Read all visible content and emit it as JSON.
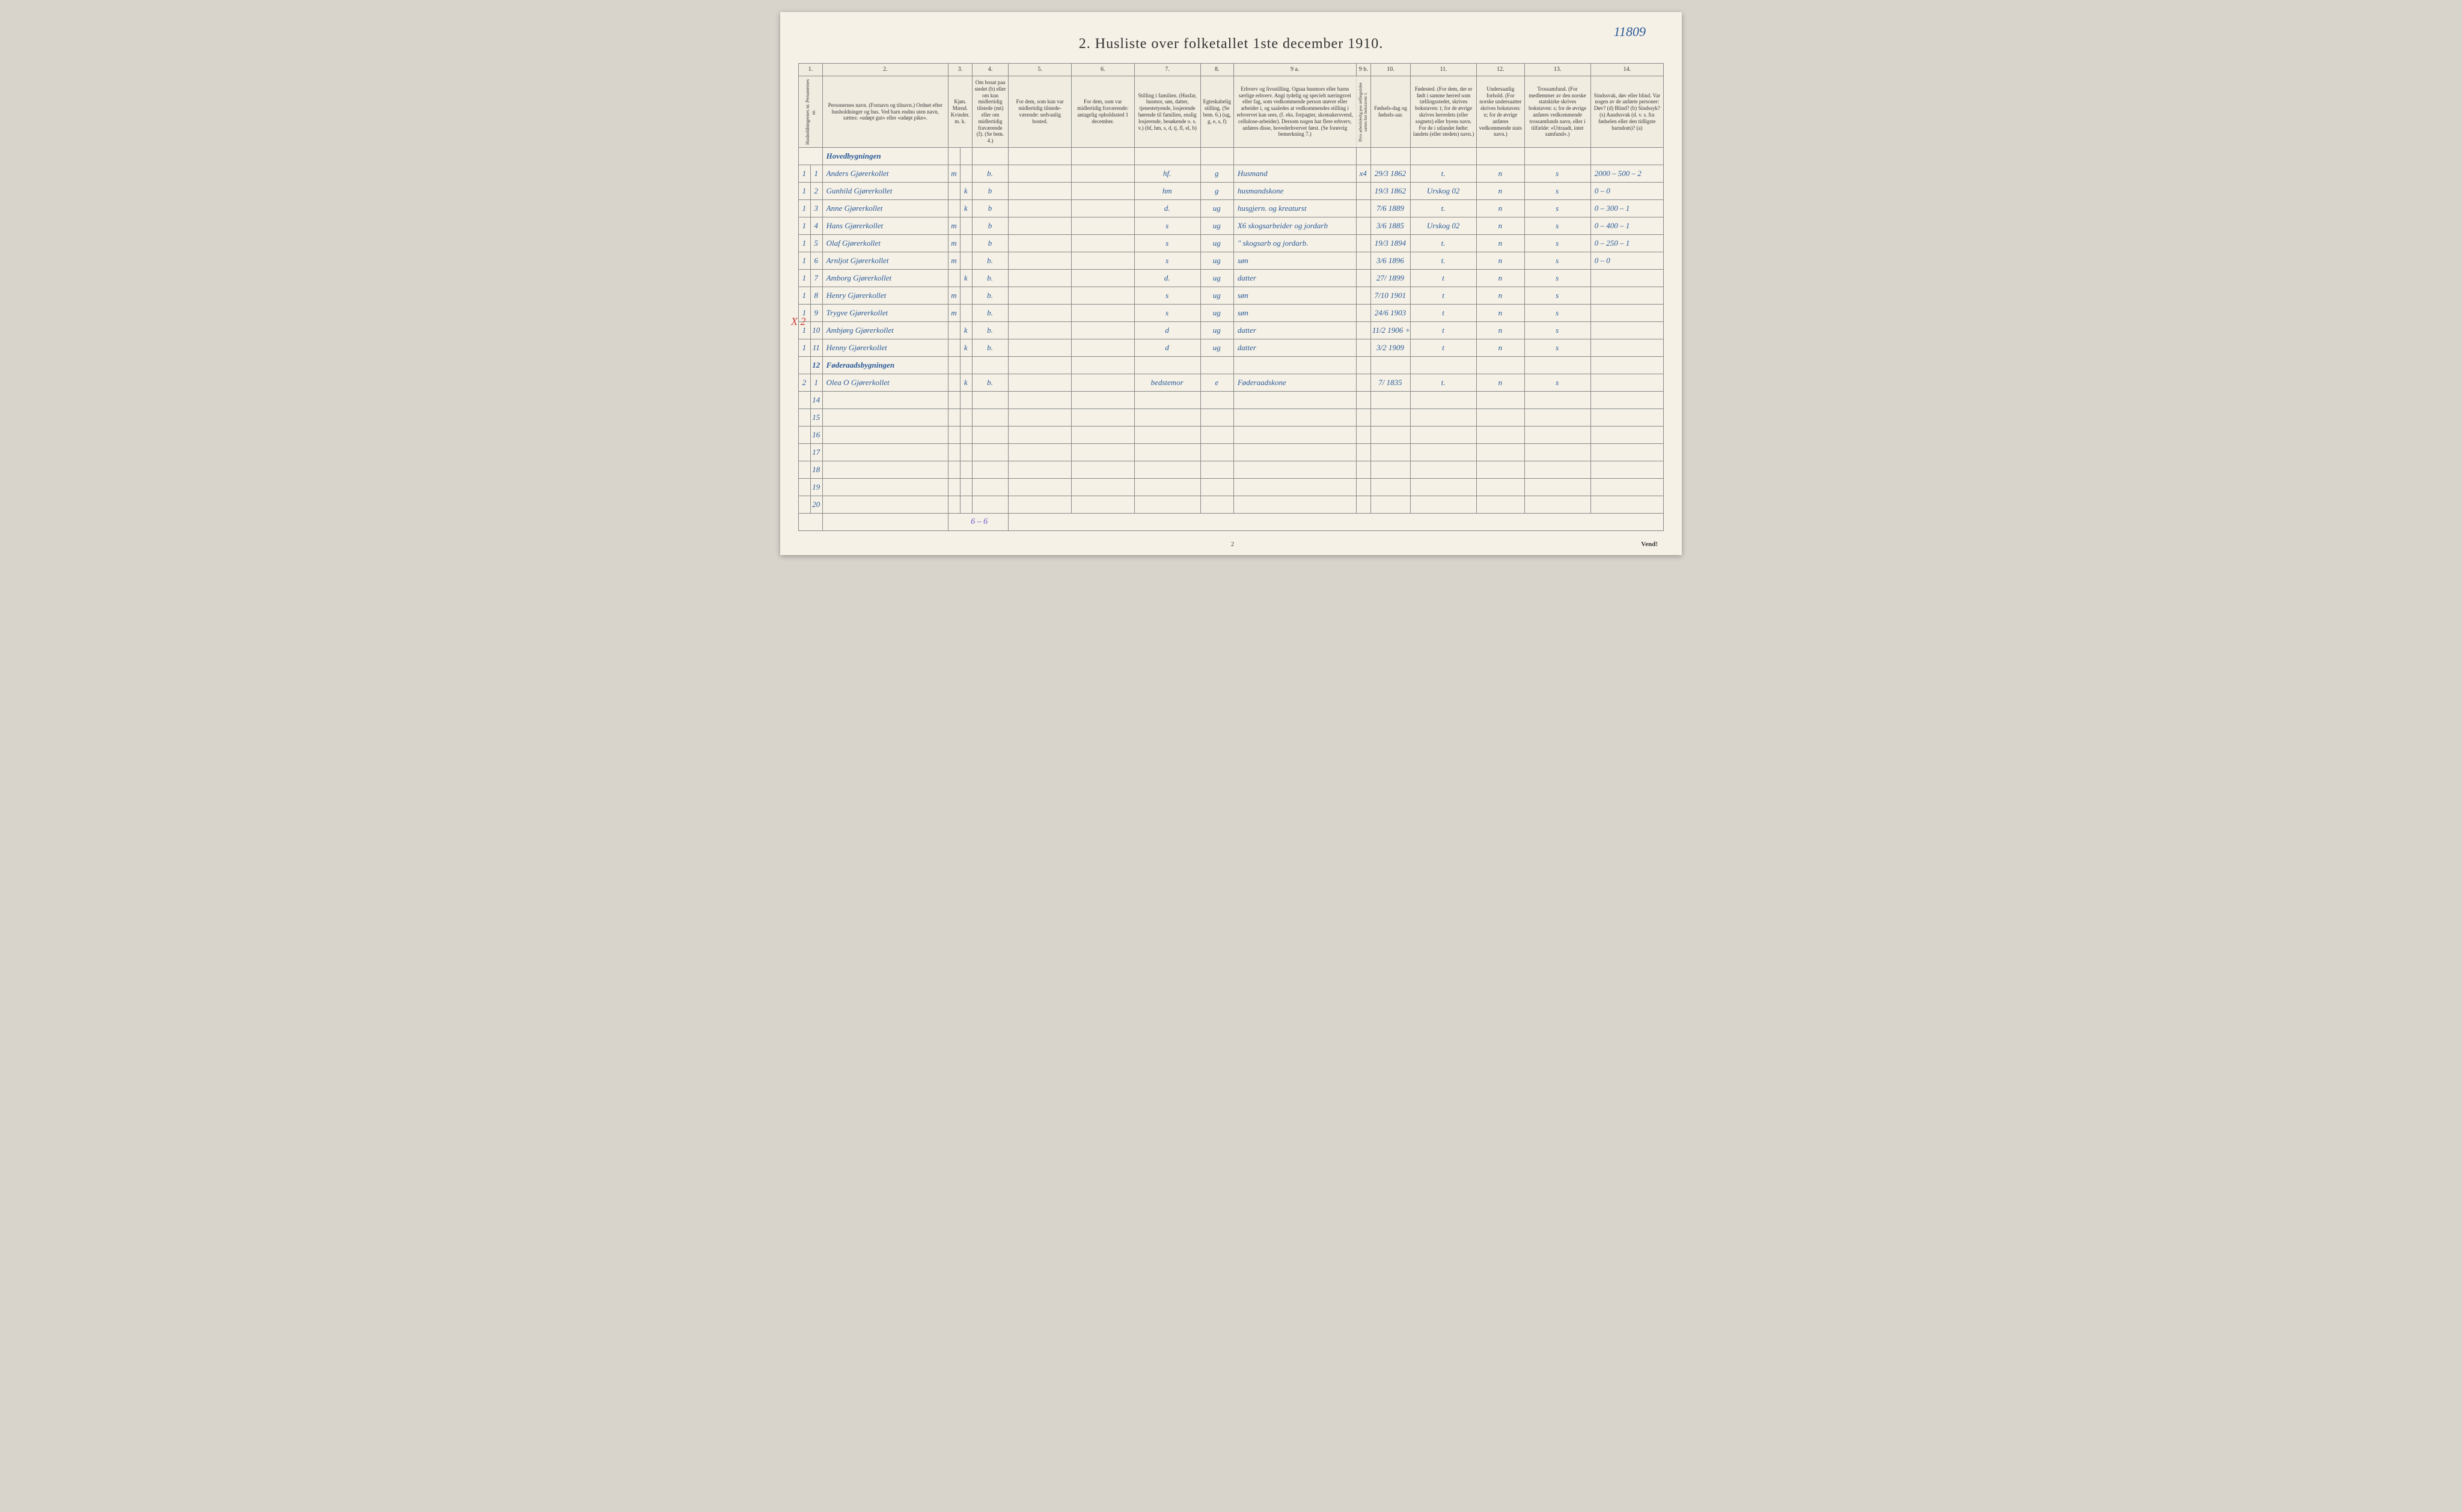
{
  "ref_number": "11809",
  "title": "2.  Husliste over folketallet 1ste december 1910.",
  "footer_vend": "Vend!",
  "page_num": "2",
  "colnums": [
    "1.",
    "2.",
    "3.",
    "4.",
    "5.",
    "6.",
    "7.",
    "8.",
    "9 a.",
    "9 b.",
    "10.",
    "11.",
    "12.",
    "13.",
    "14."
  ],
  "headers": {
    "c1": "Husholdningernes nr.\nPersonernes nr.",
    "c2": "Personernes navn.\n(Fornavn og tilnavn.)\nOrdnet efter husholdninger og hus.\nVed barn endnu uten navn, sættes: «udøpt gut» eller «udøpt pike».",
    "c3": "Kjøn.\nMænd.  Kvinder.\nm.   k.",
    "c4": "Om bosat paa stedet (b) eller om kun midlertidig tilstede (mt) eller om midlertidig fraværende (f).\n(Se bem. 4.)",
    "c5": "For dem, som kun var midlertidig tilstede-værende:\nsedvanlig bosted.",
    "c6": "For dem, som var midlertidig fraværende:\nantagelig opholdssted 1 december.",
    "c7": "Stilling i familien.\n(Husfar, husmor, søn, datter, tjenestetyende, losjerende hørende til familien, enslig losjerende, besøkende o. s. v.)\n(hf, hm, s, d, tj, fl, el, b)",
    "c8": "Egteskabelig stilling.\n(Se bem. 6.)\n(ug, g, e, s, f)",
    "c9a": "Erhverv og livsstilling.\nOgsaa husmors eller barns særlige erhverv.\nAngi tydelig og specielt næringsvei eller fag, som vedkommende person utøver eller arbeider i, og saaledes at vedkommendes stilling i erhvervet kan sees, (f. eks. forpagter, skomakersvend, cellulose-arbeider). Dersom nogen har flere erhverv, anføres disse, hovederhvervet først.\n(Se forøvrig bemerkning 7.)",
    "c9b": "Hvis arbeidsledig paa tællingstiden sættes her bokstaven: l.",
    "c10": "Fødsels-dag og fødsels-aar.",
    "c11": "Fødested.\n(For dem, der er født i samme herred som tællingsstedet, skrives bokstaven: t; for de øvrige skrives herredets (eller sognets) eller byens navn. For de i utlandet fødte: landets (eller stedets) navn.)",
    "c12": "Undersaatlig forhold.\n(For norske undersaatter skrives bokstaven: n; for de øvrige anføres vedkommende stats navn.)",
    "c13": "Trossamfund.\n(For medlemmer av den norske statskirke skrives bokstaven: s; for de øvrige anføres vedkommende trossamfunds navn, eller i tilfælde: «Uttraadt, intet samfund».)",
    "c14": "Sindssvak, døv eller blind.\nVar nogen av de anførte personer:\nDøv?   (d)\nBlind?  (b)\nSindssyk? (s)\nAandssvak (d. v. s. fra fødselen eller den tidligste barndom)? (a)"
  },
  "section1": "Hovedbygningen",
  "section2": "Føderaadsbygningen",
  "rows": [
    {
      "h": "1",
      "p": "1",
      "navn": "Anders Gjørerkollet",
      "mk": "m",
      "bf": "b.",
      "c5": "",
      "c6": "",
      "c7": "hf.",
      "c8": "g",
      "c9a": "Husmand",
      "c9b": "x4",
      "c10": "29/3 1862",
      "c11": "t.",
      "c12": "n",
      "c13": "s",
      "c14": "2000 – 500 – 2"
    },
    {
      "h": "1",
      "p": "2",
      "navn": "Gunhild Gjørerkollet",
      "mk": "k",
      "bf": "b",
      "c5": "",
      "c6": "",
      "c7": "hm",
      "c8": "g",
      "c9a": "husmandskone",
      "c9b": "",
      "c10": "19/3 1862",
      "c11": "Urskog 02",
      "c12": "n",
      "c13": "s",
      "c14": "0 – 0"
    },
    {
      "h": "1",
      "p": "3",
      "navn": "Anne Gjørerkollet",
      "mk": "k",
      "bf": "b",
      "c5": "",
      "c6": "",
      "c7": "d.",
      "c8": "ug",
      "c9a": "husgjern. og kreaturst",
      "c9b": "",
      "c10": "7/6 1889",
      "c11": "t.",
      "c12": "n",
      "c13": "s",
      "c14": "0 – 300 – 1"
    },
    {
      "h": "1",
      "p": "4",
      "navn": "Hans Gjørerkollet",
      "mk": "m",
      "bf": "b",
      "c5": "",
      "c6": "",
      "c7": "s",
      "c8": "ug",
      "c9a": "X6 skogsarbeider og jordarb",
      "c9b": "",
      "c10": "3/6 1885",
      "c11": "Urskog 02",
      "c12": "n",
      "c13": "s",
      "c14": "0 – 400 – 1"
    },
    {
      "h": "1",
      "p": "5",
      "navn": "Olaf Gjørerkollet",
      "mk": "m",
      "bf": "b",
      "c5": "",
      "c6": "",
      "c7": "s",
      "c8": "ug",
      "c9a": "\" skogsarb og jordarb.",
      "c9b": "",
      "c10": "19/3 1894",
      "c11": "t.",
      "c12": "n",
      "c13": "s",
      "c14": "0 – 250 – 1"
    },
    {
      "h": "1",
      "p": "6",
      "navn": "Arnljot Gjørerkollet",
      "mk": "m",
      "bf": "b.",
      "c5": "",
      "c6": "",
      "c7": "s",
      "c8": "ug",
      "c9a": "søn",
      "c9b": "",
      "c10": "3/6 1896",
      "c11": "t.",
      "c12": "n",
      "c13": "s",
      "c14": "0 – 0"
    },
    {
      "h": "1",
      "p": "7",
      "navn": "Amborg Gjørerkollet",
      "mk": "k",
      "bf": "b.",
      "c5": "",
      "c6": "",
      "c7": "d.",
      "c8": "ug",
      "c9a": "datter",
      "c9b": "",
      "c10": "27/ 1899",
      "c11": "t",
      "c12": "n",
      "c13": "s",
      "c14": ""
    },
    {
      "h": "1",
      "p": "8",
      "navn": "Henry Gjørerkollet",
      "mk": "m",
      "bf": "b.",
      "c5": "",
      "c6": "",
      "c7": "s",
      "c8": "ug",
      "c9a": "søn",
      "c9b": "",
      "c10": "7/10 1901",
      "c11": "t",
      "c12": "n",
      "c13": "s",
      "c14": ""
    },
    {
      "h": "1",
      "p": "9",
      "navn": "Trygve Gjørerkollet",
      "mk": "m",
      "bf": "b.",
      "c5": "",
      "c6": "",
      "c7": "s",
      "c8": "ug",
      "c9a": "søn",
      "c9b": "",
      "c10": "24/6 1903",
      "c11": "t",
      "c12": "n",
      "c13": "s",
      "c14": ""
    },
    {
      "h": "1",
      "p": "10",
      "navn": "Ambjørg Gjørerkollet",
      "mk": "k",
      "bf": "b.",
      "c5": "",
      "c6": "",
      "c7": "d",
      "c8": "ug",
      "c9a": "datter",
      "c9b": "",
      "c10": "11/2 1906 +",
      "c11": "t",
      "c12": "n",
      "c13": "s",
      "c14": ""
    },
    {
      "h": "1",
      "p": "11",
      "navn": "Henny Gjørerkollet",
      "mk": "k",
      "bf": "b.",
      "c5": "",
      "c6": "",
      "c7": "d",
      "c8": "ug",
      "c9a": "datter",
      "c9b": "",
      "c10": "3/2 1909",
      "c11": "t",
      "c12": "n",
      "c13": "s",
      "c14": ""
    }
  ],
  "row13": {
    "h": "2",
    "p": "1",
    "navn": "Olea O Gjørerkollet",
    "mk": "k",
    "bf": "b.",
    "c5": "",
    "c6": "",
    "c7": "bedstemor",
    "c8": "e",
    "c9a": "Føderaadskone",
    "c9b": "",
    "c10": "7/ 1835",
    "c11": "t.",
    "c12": "n",
    "c13": "s",
    "c14": ""
  },
  "empty_labels": [
    "12",
    "14",
    "15",
    "16",
    "17",
    "18",
    "19",
    "20"
  ],
  "tally": "6 – 6",
  "red_mark": "X 2"
}
